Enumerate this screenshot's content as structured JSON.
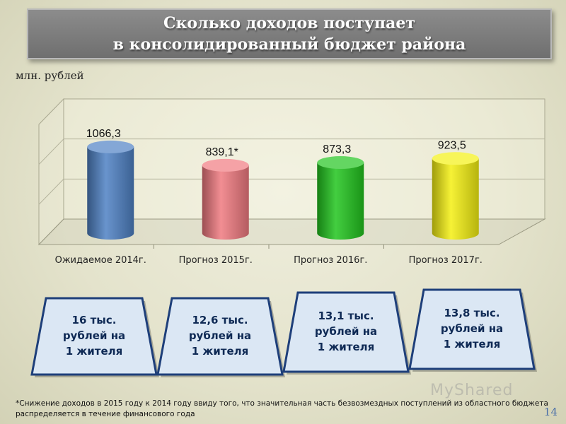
{
  "title": {
    "line1": "Сколько доходов поступает",
    "line2": "в консолидированный бюджет района"
  },
  "unit_label": "млн. рублей",
  "chart_data": {
    "type": "bar",
    "categories": [
      "Ожидаемое 2014г.",
      "Прогноз 2015г.",
      "Прогноз 2016г.",
      "Прогноз 2017г."
    ],
    "values": [
      1066.3,
      839.1,
      873.3,
      923.5
    ],
    "value_labels": [
      "1066,3",
      "839,1*",
      "873,3",
      "923,5"
    ],
    "colors": [
      "#4f81c4",
      "#f07a80",
      "#22c51e",
      "#f4f012"
    ],
    "ylabel": "млн. рублей",
    "grid": true,
    "legend": "none"
  },
  "per_capita": [
    {
      "line1": "16 тыс.",
      "line2": "рублей на",
      "line3": "1 жителя"
    },
    {
      "line1": "12,6 тыс.",
      "line2": "рублей на",
      "line3": "1 жителя"
    },
    {
      "line1": "13,1 тыс.",
      "line2": "рублей на",
      "line3": "1 жителя"
    },
    {
      "line1": "13,8 тыс.",
      "line2": "рублей на",
      "line3": "1 жителя"
    }
  ],
  "footnote": "*Снижение доходов в 2015 году к 2014 году  ввиду того, что значительная часть безвозмездных поступлений из областного бюджета распределяется в течение финансового года",
  "page_number": "14",
  "watermark": "MyShared"
}
